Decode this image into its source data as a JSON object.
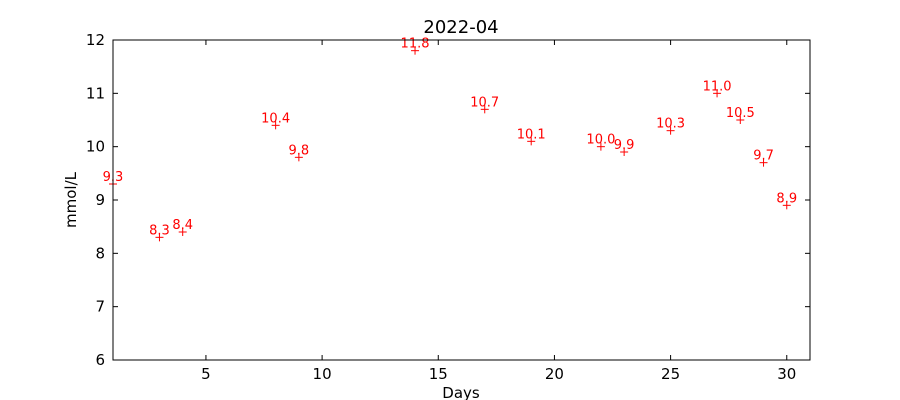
{
  "chart_data": {
    "type": "scatter",
    "title": "2022-04",
    "xlabel": "Days",
    "ylabel": "mmol/L",
    "xlim": [
      1,
      31
    ],
    "ylim": [
      6,
      12
    ],
    "xticks": [
      5,
      10,
      15,
      20,
      25,
      30
    ],
    "yticks": [
      6,
      7,
      8,
      9,
      10,
      11,
      12
    ],
    "grid": false,
    "marker": "+",
    "color": "#ff0000",
    "points": [
      {
        "x": 1,
        "y": 9.3,
        "label": "9.3"
      },
      {
        "x": 3,
        "y": 8.3,
        "label": "8.3"
      },
      {
        "x": 4,
        "y": 8.4,
        "label": "8.4"
      },
      {
        "x": 8,
        "y": 10.4,
        "label": "10.4"
      },
      {
        "x": 9,
        "y": 9.8,
        "label": "9.8"
      },
      {
        "x": 14,
        "y": 11.8,
        "label": "11.8"
      },
      {
        "x": 17,
        "y": 10.7,
        "label": "10.7"
      },
      {
        "x": 19,
        "y": 10.1,
        "label": "10.1"
      },
      {
        "x": 22,
        "y": 10.0,
        "label": "10.0"
      },
      {
        "x": 23,
        "y": 9.9,
        "label": "9.9"
      },
      {
        "x": 25,
        "y": 10.3,
        "label": "10.3"
      },
      {
        "x": 27,
        "y": 11.0,
        "label": "11.0"
      },
      {
        "x": 28,
        "y": 10.5,
        "label": "10.5"
      },
      {
        "x": 29,
        "y": 9.7,
        "label": "9.7"
      },
      {
        "x": 30,
        "y": 8.9,
        "label": "8.9"
      }
    ]
  }
}
